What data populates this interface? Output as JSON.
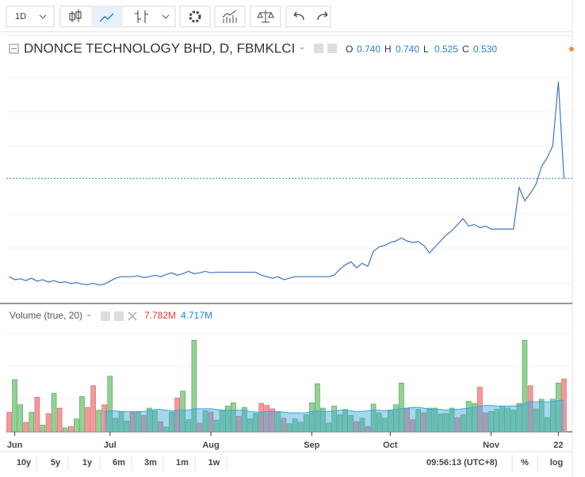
{
  "toolbar": {
    "interval": "1D"
  },
  "chart_data": [
    {
      "type": "line",
      "title": "DNONCE TECHNOLOGY BHD, D, FBMKLCI",
      "color": "#3a75c4",
      "ohlc": [
        {
          "name": "O",
          "value": {
            "value": 0.74,
            "label": "0.740"
          }
        },
        {
          "name": "H",
          "value": {
            "value": 0.74,
            "label": "0.740"
          }
        },
        {
          "name": "L",
          "value": {
            "value": 0.525,
            "label": "0.525"
          }
        },
        {
          "name": "C",
          "value": {
            "value": 0.53,
            "label": "0.530"
          }
        }
      ],
      "ylim": [
        0.11,
        1.01
      ],
      "values": [
        0.2,
        0.19,
        0.193,
        0.187,
        0.195,
        0.185,
        0.19,
        0.182,
        0.187,
        0.18,
        0.183,
        0.177,
        0.18,
        0.175,
        0.173,
        0.178,
        0.172,
        0.175,
        0.185,
        0.195,
        0.2,
        0.2,
        0.2,
        0.203,
        0.197,
        0.2,
        0.205,
        0.2,
        0.207,
        0.213,
        0.205,
        0.21,
        0.218,
        0.21,
        0.213,
        0.218,
        0.213,
        0.215,
        0.215,
        0.215,
        0.215,
        0.215,
        0.215,
        0.215,
        0.215,
        0.205,
        0.2,
        0.195,
        0.2,
        0.19,
        0.195,
        0.2,
        0.2,
        0.2,
        0.2,
        0.2,
        0.2,
        0.2,
        0.205,
        0.225,
        0.24,
        0.25,
        0.23,
        0.245,
        0.235,
        0.285,
        0.3,
        0.305,
        0.315,
        0.32,
        0.33,
        0.32,
        0.315,
        0.318,
        0.305,
        0.28,
        0.3,
        0.32,
        0.34,
        0.355,
        0.375,
        0.395,
        0.37,
        0.375,
        0.365,
        0.37,
        0.36,
        0.36,
        0.36,
        0.36,
        0.36,
        0.5,
        0.455,
        0.48,
        0.51,
        0.57,
        0.6,
        0.64,
        0.855,
        0.53
      ]
    },
    {
      "type": "bar",
      "title": "Volume (true, 20)",
      "legend_values": [
        {
          "value": 7.782,
          "label": "7.782M",
          "color": "#e53935"
        },
        {
          "value": 4.717,
          "label": "4.717M",
          "color": "#1e88e5"
        }
      ],
      "ylim": [
        0,
        16
      ],
      "up_color": "#93d194",
      "down_color": "#f29a9a",
      "ma_color": "#3aa6dc",
      "categories": [
        null,
        "Jun",
        null,
        null,
        null,
        null,
        null,
        null,
        null,
        null,
        null,
        null,
        null,
        null,
        null,
        null,
        null,
        null,
        "Jul",
        null,
        null,
        null,
        null,
        null,
        null,
        null,
        null,
        null,
        null,
        null,
        null,
        null,
        null,
        null,
        null,
        null,
        "Aug",
        null,
        null,
        null,
        null,
        null,
        null,
        null,
        null,
        null,
        null,
        null,
        null,
        null,
        null,
        null,
        null,
        null,
        "Sep",
        null,
        null,
        null,
        null,
        null,
        null,
        null,
        null,
        null,
        null,
        null,
        null,
        null,
        "Oct",
        null,
        null,
        null,
        null,
        null,
        null,
        null,
        null,
        null,
        null,
        null,
        null,
        null,
        null,
        null,
        null,
        null,
        "Nov",
        null,
        null,
        null,
        null,
        null,
        null,
        null,
        null,
        null,
        null,
        null,
        "22",
        null
      ],
      "values": [
        2.9,
        7.7,
        4.0,
        1.4,
        2.9,
        5.1,
        1.0,
        2.7,
        5.7,
        3.5,
        0.6,
        0.8,
        1.9,
        5.2,
        3.6,
        6.8,
        3.2,
        4.0,
        8.2,
        2.0,
        3.0,
        1.6,
        2.9,
        3.0,
        2.4,
        3.5,
        3.1,
        1.5,
        0.7,
        2.9,
        5.0,
        6.0,
        1.8,
        13.5,
        1.3,
        3.1,
        2.9,
        1.7,
        3.1,
        3.8,
        4.3,
        2.3,
        3.6,
        1.9,
        2.7,
        4.2,
        3.9,
        3.4,
        3.0,
        2.0,
        1.2,
        1.9,
        1.4,
        2.5,
        4.3,
        7.1,
        3.5,
        1.3,
        3.8,
        2.5,
        3.3,
        2.4,
        1.5,
        2.0,
        0.8,
        4.1,
        2.8,
        2.0,
        3.2,
        4.0,
        7.2,
        3.5,
        1.8,
        3.3,
        2.8,
        3.5,
        3.5,
        2.6,
        2.7,
        3.5,
        2.1,
        2.5,
        4.5,
        4.2,
        6.6,
        2.8,
        3.0,
        3.3,
        3.8,
        3.5,
        3.2,
        4.2,
        13.5,
        6.8,
        3.4,
        4.8,
        2.1,
        4.8,
        7.2,
        7.8
      ],
      "up": [
        0,
        1,
        1,
        0,
        1,
        0,
        1,
        0,
        1,
        0,
        1,
        0,
        1,
        1,
        0,
        0,
        1,
        0,
        1,
        1,
        1,
        1,
        0,
        1,
        0,
        1,
        1,
        0,
        1,
        1,
        0,
        1,
        1,
        1,
        0,
        1,
        0,
        1,
        1,
        1,
        1,
        0,
        1,
        1,
        1,
        0,
        0,
        0,
        1,
        0,
        1,
        1,
        1,
        1,
        1,
        1,
        1,
        1,
        1,
        1,
        1,
        1,
        0,
        1,
        0,
        1,
        1,
        1,
        1,
        1,
        1,
        0,
        0,
        1,
        0,
        1,
        1,
        1,
        1,
        1,
        0,
        1,
        1,
        1,
        0,
        0,
        1,
        1,
        1,
        1,
        1,
        1,
        1,
        0,
        1,
        1,
        1,
        1,
        1,
        0
      ],
      "ma_values": [
        null,
        null,
        null,
        null,
        null,
        null,
        null,
        null,
        null,
        null,
        null,
        null,
        null,
        null,
        null,
        null,
        null,
        3.0,
        3.1,
        3.1,
        3.0,
        3.0,
        3.0,
        2.9,
        3.0,
        3.2,
        3.3,
        3.3,
        3.2,
        3.1,
        3.2,
        3.2,
        3.2,
        3.4,
        3.4,
        3.4,
        3.4,
        3.3,
        3.2,
        3.2,
        3.2,
        3.2,
        3.2,
        3.0,
        2.9,
        2.9,
        3.0,
        3.0,
        3.0,
        2.9,
        2.8,
        2.8,
        2.8,
        2.8,
        3.0,
        3.1,
        3.0,
        3.0,
        3.1,
        3.2,
        3.2,
        3.1,
        3.0,
        3.0,
        3.1,
        3.2,
        3.2,
        3.1,
        3.2,
        3.3,
        3.4,
        3.5,
        3.6,
        3.6,
        3.5,
        3.3,
        3.3,
        3.3,
        3.2,
        3.3,
        3.3,
        3.4,
        3.5,
        3.6,
        3.8,
        3.9,
        3.9,
        3.8,
        3.8,
        3.8,
        3.8,
        3.9,
        4.2,
        4.5,
        4.4,
        4.5,
        4.4,
        4.5,
        4.6,
        4.7
      ]
    }
  ],
  "bottom_bar": {
    "ranges": [
      "10y",
      "5y",
      "1y",
      "6m",
      "3m",
      "1m",
      "1w"
    ],
    "time": "09:56:13 (UTC+8)",
    "percent": "%",
    "log": "log"
  }
}
